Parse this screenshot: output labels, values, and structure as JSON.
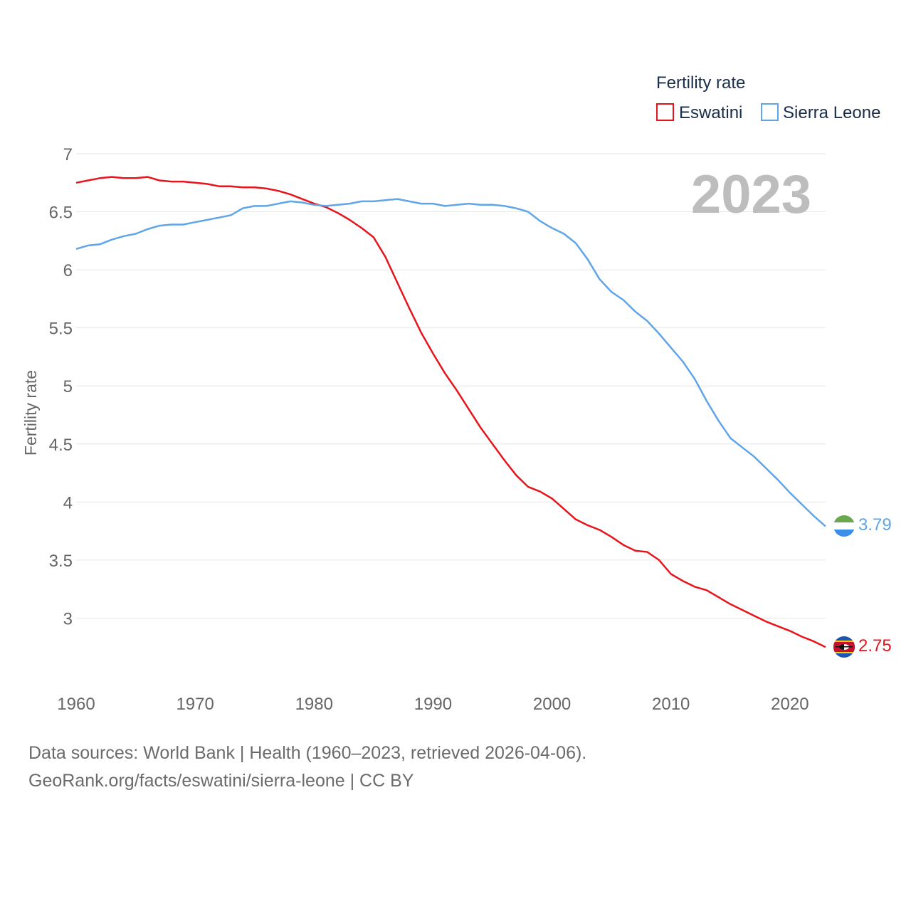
{
  "chart_data": {
    "type": "line",
    "title": "",
    "legend_title": "Fertility rate",
    "year_label": "2023",
    "xlabel": "",
    "ylabel": "Fertility rate",
    "xlim": [
      1960,
      2023
    ],
    "ylim": [
      2.5,
      7.0
    ],
    "x_ticks": [
      1960,
      1970,
      1980,
      1990,
      2000,
      2010,
      2020
    ],
    "y_ticks": [
      3,
      3.5,
      4,
      4.5,
      5,
      5.5,
      6,
      6.5,
      7
    ],
    "legend_position": "top-right",
    "x": [
      1960,
      1961,
      1962,
      1963,
      1964,
      1965,
      1966,
      1967,
      1968,
      1969,
      1970,
      1971,
      1972,
      1973,
      1974,
      1975,
      1976,
      1977,
      1978,
      1979,
      1980,
      1981,
      1982,
      1983,
      1984,
      1985,
      1986,
      1987,
      1988,
      1989,
      1990,
      1991,
      1992,
      1993,
      1994,
      1995,
      1996,
      1997,
      1998,
      1999,
      2000,
      2001,
      2002,
      2003,
      2004,
      2005,
      2006,
      2007,
      2008,
      2009,
      2010,
      2011,
      2012,
      2013,
      2014,
      2015,
      2016,
      2017,
      2018,
      2019,
      2020,
      2021,
      2022,
      2023
    ],
    "series": [
      {
        "name": "Eswatini",
        "color": "#e8141c",
        "end_label": "2.75",
        "flag": "eswatini",
        "values": [
          6.75,
          6.77,
          6.79,
          6.8,
          6.79,
          6.79,
          6.8,
          6.77,
          6.76,
          6.76,
          6.75,
          6.74,
          6.72,
          6.72,
          6.71,
          6.71,
          6.7,
          6.68,
          6.65,
          6.61,
          6.57,
          6.54,
          6.49,
          6.43,
          6.36,
          6.28,
          6.11,
          5.89,
          5.67,
          5.46,
          5.28,
          5.11,
          4.96,
          4.8,
          4.64,
          4.5,
          4.36,
          4.23,
          4.13,
          4.09,
          4.03,
          3.94,
          3.85,
          3.8,
          3.76,
          3.7,
          3.63,
          3.58,
          3.57,
          3.5,
          3.38,
          3.32,
          3.27,
          3.24,
          3.18,
          3.12,
          3.07,
          3.02,
          2.97,
          2.93,
          2.89,
          2.84,
          2.8,
          2.75
        ]
      },
      {
        "name": "Sierra Leone",
        "color": "#5fa5e8",
        "end_label": "3.79",
        "flag": "sierra-leone",
        "values": [
          6.18,
          6.21,
          6.22,
          6.26,
          6.29,
          6.31,
          6.35,
          6.38,
          6.39,
          6.39,
          6.41,
          6.43,
          6.45,
          6.47,
          6.53,
          6.55,
          6.55,
          6.57,
          6.59,
          6.58,
          6.56,
          6.55,
          6.56,
          6.57,
          6.59,
          6.59,
          6.6,
          6.61,
          6.59,
          6.57,
          6.57,
          6.55,
          6.56,
          6.57,
          6.56,
          6.56,
          6.55,
          6.53,
          6.5,
          6.42,
          6.36,
          6.31,
          6.23,
          6.09,
          5.92,
          5.81,
          5.74,
          5.64,
          5.56,
          5.45,
          5.33,
          5.21,
          5.06,
          4.87,
          4.7,
          4.55,
          4.47,
          4.39,
          4.29,
          4.19,
          4.08,
          3.98,
          3.88,
          3.79
        ]
      }
    ]
  },
  "footer": {
    "sources": "Data sources: World Bank | Health (1960–2023, retrieved 2026-04-06).",
    "license": "GeoRank.org/facts/eswatini/sierra-leone | CC BY"
  }
}
